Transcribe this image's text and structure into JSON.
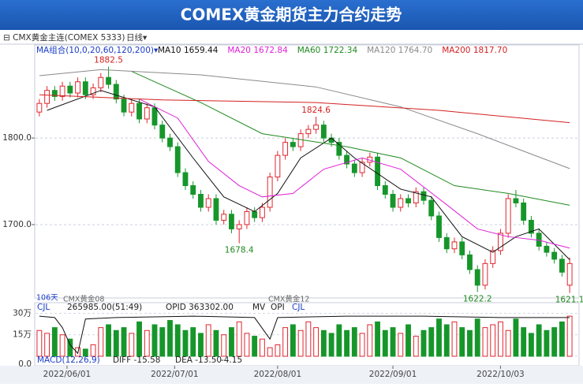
{
  "chart_data": {
    "type": "candlestick",
    "title": "COMEX黄金期货主力合约走势",
    "symbol": "CMX黄金主连(COMEX 5333)",
    "period": "日线",
    "ma_group": "MA组合(10,0,20,60,120,200)",
    "ylim": [
      1618,
      1903
    ],
    "yticks": [
      {
        "value": 1800,
        "label": "1800.0"
      },
      {
        "value": 1700,
        "label": "1700.0"
      }
    ],
    "grid": true,
    "xlim": [
      0,
      70
    ],
    "xticks": [
      {
        "value": 3.6,
        "label": "2022/06/01"
      },
      {
        "value": 17.6,
        "label": "2022/07/01"
      },
      {
        "value": 31,
        "label": "2022/08/01"
      },
      {
        "value": 46,
        "label": "2022/09/01"
      },
      {
        "value": 60,
        "label": "2022/10/03"
      }
    ],
    "up_color": "#e0262f",
    "down_color": "#16962a",
    "opens": [
      1830,
      1840,
      1855,
      1848,
      1860,
      1852,
      1865,
      1850,
      1858,
      1870,
      1862,
      1845,
      1830,
      1840,
      1822,
      1835,
      1815,
      1800,
      1790,
      1760,
      1745,
      1735,
      1720,
      1730,
      1705,
      1712,
      1695,
      1700,
      1715,
      1708,
      1720,
      1755,
      1780,
      1795,
      1790,
      1805,
      1810,
      1815,
      1800,
      1795,
      1780,
      1770,
      1760,
      1772,
      1778,
      1745,
      1735,
      1720,
      1730,
      1725,
      1738,
      1728,
      1710,
      1685,
      1672,
      1680,
      1665,
      1648,
      1630,
      1655,
      1670,
      1690,
      1730,
      1725,
      1705,
      1690,
      1675,
      1668,
      1660,
      1630
    ],
    "closes": [
      1840,
      1855,
      1848,
      1860,
      1852,
      1865,
      1850,
      1858,
      1870,
      1862,
      1845,
      1830,
      1840,
      1822,
      1835,
      1815,
      1800,
      1790,
      1760,
      1745,
      1735,
      1720,
      1730,
      1705,
      1712,
      1695,
      1700,
      1715,
      1708,
      1720,
      1755,
      1780,
      1795,
      1790,
      1805,
      1810,
      1815,
      1800,
      1795,
      1780,
      1770,
      1760,
      1772,
      1778,
      1745,
      1735,
      1720,
      1730,
      1725,
      1738,
      1728,
      1710,
      1685,
      1672,
      1680,
      1665,
      1648,
      1630,
      1655,
      1670,
      1690,
      1730,
      1725,
      1705,
      1690,
      1675,
      1668,
      1660,
      1645,
      1655
    ],
    "highs": [
      1845,
      1860,
      1860,
      1865,
      1865,
      1870,
      1870,
      1863,
      1875,
      1882.5,
      1867,
      1850,
      1845,
      1845,
      1840,
      1840,
      1820,
      1805,
      1795,
      1765,
      1750,
      1740,
      1735,
      1735,
      1717,
      1717,
      1705,
      1720,
      1720,
      1725,
      1760,
      1785,
      1800,
      1800,
      1810,
      1815,
      1824.6,
      1820,
      1805,
      1800,
      1785,
      1775,
      1777,
      1783,
      1783,
      1750,
      1740,
      1735,
      1735,
      1743,
      1743,
      1733,
      1715,
      1690,
      1685,
      1685,
      1670,
      1653,
      1660,
      1675,
      1695,
      1735,
      1740,
      1730,
      1710,
      1695,
      1680,
      1673,
      1665,
      1662
    ],
    "lows": [
      1825,
      1835,
      1843,
      1843,
      1847,
      1847,
      1845,
      1845,
      1853,
      1857,
      1840,
      1825,
      1825,
      1817,
      1817,
      1810,
      1795,
      1785,
      1755,
      1740,
      1730,
      1715,
      1715,
      1700,
      1700,
      1690,
      1678.4,
      1695,
      1703,
      1703,
      1715,
      1750,
      1775,
      1785,
      1785,
      1800,
      1805,
      1795,
      1790,
      1775,
      1765,
      1755,
      1755,
      1767,
      1740,
      1730,
      1715,
      1715,
      1720,
      1720,
      1723,
      1705,
      1680,
      1667,
      1667,
      1660,
      1643,
      1622.2,
      1625,
      1650,
      1665,
      1685,
      1720,
      1700,
      1685,
      1670,
      1663,
      1655,
      1640,
      1621.1
    ],
    "annotate_highs": [
      9,
      36
    ],
    "annotate_lows": [
      26,
      57,
      69
    ],
    "series": [
      {
        "name": "MA10",
        "label": "1659.44",
        "color": "#111111",
        "x": [
          1,
          8,
          15,
          20,
          24,
          28,
          31,
          34,
          38,
          41,
          47,
          51,
          55,
          59,
          62,
          65,
          69
        ],
        "values": [
          1832,
          1855,
          1836,
          1777,
          1732,
          1715,
          1736,
          1777,
          1800,
          1777,
          1741,
          1732,
          1686,
          1668,
          1686,
          1695,
          1659.44
        ]
      },
      {
        "name": "MA20",
        "label": "1672.84",
        "color": "#e020d8",
        "x": [
          13,
          18,
          22,
          26,
          29,
          33,
          37,
          42,
          47,
          53,
          57,
          61,
          65,
          69
        ],
        "values": [
          1845,
          1823,
          1773,
          1745,
          1732,
          1736,
          1764,
          1777,
          1764,
          1723,
          1695,
          1686,
          1682,
          1672.84
        ]
      },
      {
        "name": "MA60",
        "label": "1722.34",
        "color": "#1f8a1f",
        "x": [
          12,
          21,
          29,
          40,
          47,
          54,
          61,
          69
        ],
        "values": [
          1877,
          1841,
          1805,
          1790,
          1777,
          1745,
          1736,
          1722.34
        ]
      },
      {
        "name": "MA120",
        "label": "1764.70",
        "color": "#8a8a8a",
        "x": [
          0,
          8,
          21,
          36,
          47,
          57,
          69
        ],
        "values": [
          1872,
          1879,
          1873,
          1859,
          1836,
          1805,
          1764.7
        ]
      },
      {
        "name": "MA200",
        "label": "1817.70",
        "color": "#d42020",
        "x": [
          0,
          16,
          36,
          52,
          69
        ],
        "values": [
          1850,
          1844,
          1841,
          1832,
          1817.7
        ]
      }
    ],
    "notes": [
      "106天",
      "CMX黄金08",
      "CMX黄金12"
    ],
    "volume": {
      "indicator": "CJL",
      "readout": "265985.00(51:49)",
      "opid": "OPID 363302.00",
      "mv": "MV",
      "ylim": [
        0,
        33
      ],
      "yticks": [
        {
          "value": 30,
          "label": "30万"
        },
        {
          "value": 15,
          "label": "15万"
        },
        {
          "value": 0,
          "label": "0.0"
        }
      ],
      "series": [
        {
          "name": "CJL",
          "color": "#1a3cc8",
          "values": [
            18,
            16,
            20,
            15,
            12,
            6,
            5,
            8,
            20,
            22,
            18,
            20,
            16,
            24,
            18,
            22,
            20,
            25,
            22,
            18,
            20,
            16,
            22,
            18,
            15,
            20,
            24,
            16,
            14,
            12,
            6,
            8,
            20,
            22,
            18,
            24,
            20,
            18,
            16,
            22,
            18,
            20,
            16,
            22,
            24,
            18,
            20,
            16,
            22,
            14,
            18,
            20,
            26,
            22,
            24,
            20,
            18,
            26,
            20,
            22,
            24,
            18,
            26,
            20,
            16,
            22,
            18,
            20,
            24,
            28
          ]
        },
        {
          "name": "OPI",
          "color": "#111111",
          "x": [
            0,
            2,
            3,
            4,
            5,
            6,
            10,
            20,
            28,
            30,
            31,
            40,
            50,
            60,
            69
          ],
          "values": [
            28,
            27,
            20,
            8,
            2,
            26,
            27,
            28,
            27,
            12,
            27,
            28,
            28,
            27,
            27
          ]
        }
      ]
    },
    "macd": {
      "name": "MACD(12,26,9)",
      "diff": "DIFF -15.58",
      "dea": "DEA -13.50",
      "macd": "-4.15"
    }
  }
}
